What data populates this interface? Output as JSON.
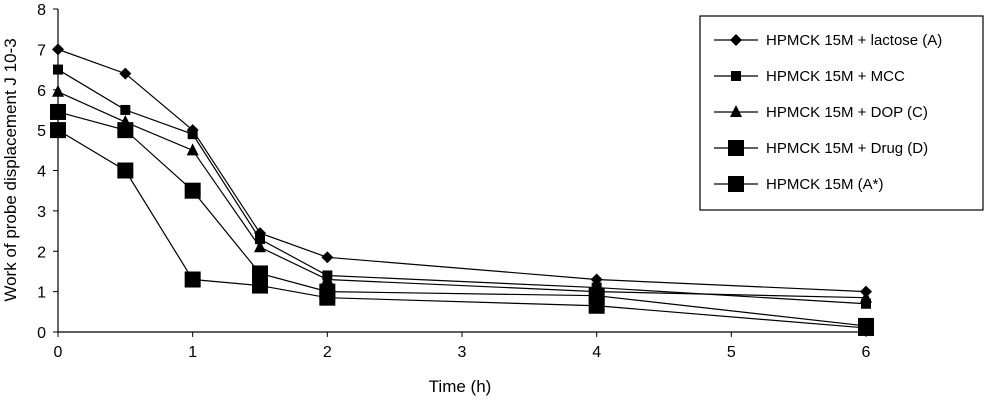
{
  "chart_data": {
    "type": "line",
    "xlabel": "Time (h)",
    "ylabel": "Work of probe displacement J 10-3",
    "xlim": [
      0,
      6
    ],
    "ylim": [
      0,
      8
    ],
    "xticks": [
      0,
      1,
      2,
      3,
      4,
      5,
      6
    ],
    "yticks": [
      0,
      1,
      2,
      3,
      4,
      5,
      6,
      7,
      8
    ],
    "grid": false,
    "legend_position": "top-right",
    "series": [
      {
        "name": "HPMCK 15M + lactose (A)",
        "marker": "diamond",
        "x": [
          0,
          0.5,
          1,
          1.5,
          2,
          4,
          6
        ],
        "y": [
          7.0,
          6.4,
          5.0,
          2.45,
          1.85,
          1.3,
          1.0
        ]
      },
      {
        "name": "HPMCK 15M + MCC",
        "marker": "square-small",
        "x": [
          0,
          0.5,
          1,
          1.5,
          2,
          4,
          6
        ],
        "y": [
          6.5,
          5.5,
          4.9,
          2.3,
          1.4,
          1.1,
          0.7
        ]
      },
      {
        "name": "HPMCK 15M + DOP (C)",
        "marker": "triangle",
        "x": [
          0,
          0.5,
          1,
          1.5,
          2,
          4,
          6
        ],
        "y": [
          5.95,
          5.2,
          4.5,
          2.1,
          1.3,
          1.0,
          0.85
        ]
      },
      {
        "name": "HPMCK 15M + Drug (D)",
        "marker": "square-large",
        "x": [
          0,
          0.5,
          1,
          1.5,
          2,
          4,
          6
        ],
        "y": [
          5.45,
          5.0,
          3.5,
          1.45,
          1.0,
          0.9,
          0.15
        ]
      },
      {
        "name": "HPMCK 15M (A*)",
        "marker": "square-large",
        "x": [
          0,
          0.5,
          1,
          1.5,
          2,
          4,
          6
        ],
        "y": [
          5.0,
          4.0,
          1.3,
          1.15,
          0.85,
          0.65,
          0.1
        ]
      }
    ]
  }
}
